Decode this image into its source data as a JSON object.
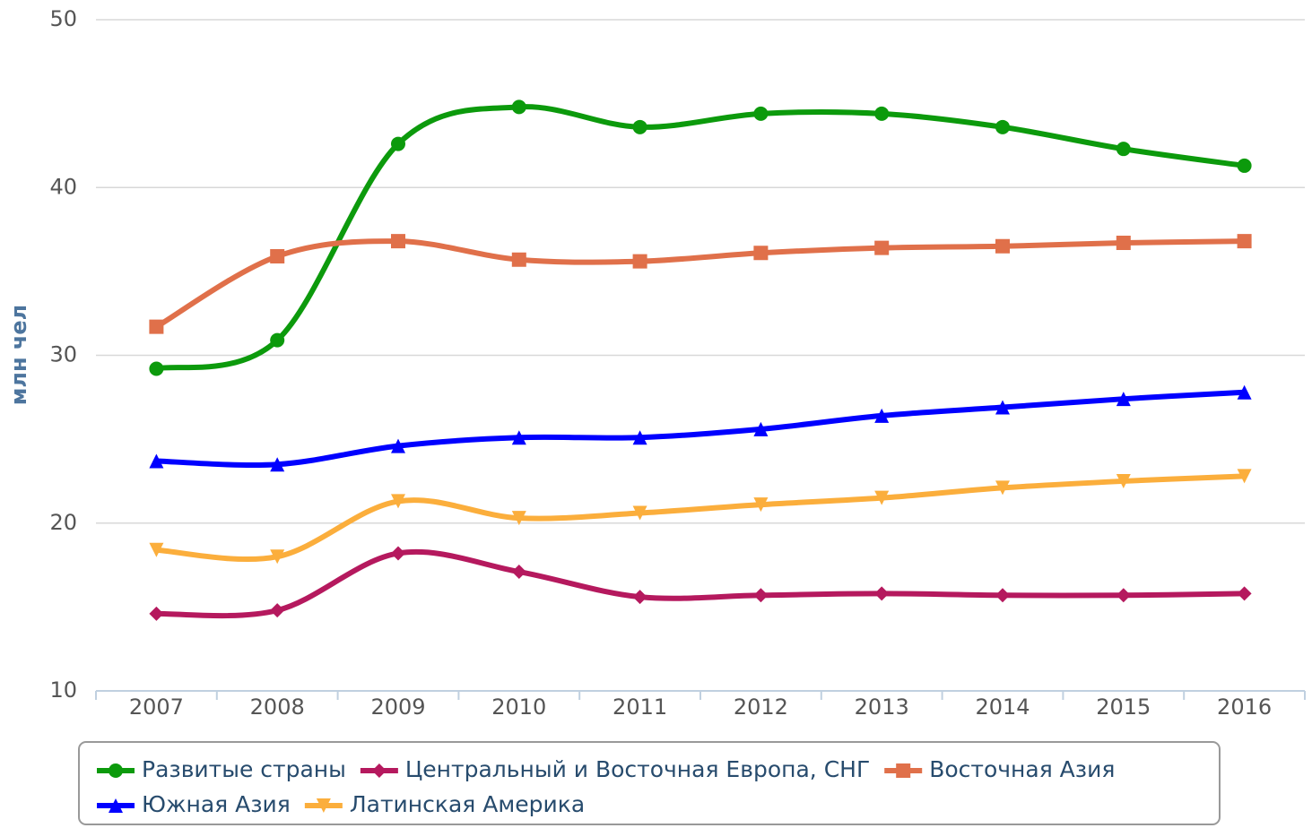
{
  "chart_data": {
    "type": "line",
    "smooth": true,
    "y_axis_label": "млн чел",
    "categories": [
      "2007",
      "2008",
      "2009",
      "2010",
      "2011",
      "2012",
      "2013",
      "2014",
      "2015",
      "2016"
    ],
    "series": [
      {
        "name": "Развитые страны",
        "color": "#0c9a0c",
        "symbol": "circle",
        "values": [
          29.2,
          30.9,
          42.6,
          44.8,
          43.6,
          44.4,
          44.4,
          43.6,
          42.3,
          41.3
        ]
      },
      {
        "name": "Центральный и Восточная Европа, СНГ",
        "color": "#b5195e",
        "symbol": "diamond",
        "values": [
          14.6,
          14.8,
          18.2,
          17.1,
          15.6,
          15.7,
          15.8,
          15.7,
          15.7,
          15.8
        ]
      },
      {
        "name": "Восточная Азия",
        "color": "#e0704a",
        "symbol": "square",
        "values": [
          31.7,
          35.9,
          36.8,
          35.7,
          35.6,
          36.1,
          36.4,
          36.5,
          36.7,
          36.8
        ]
      },
      {
        "name": "Южная Азия",
        "color": "#0000ff",
        "symbol": "triangle",
        "values": [
          23.7,
          23.5,
          24.6,
          25.1,
          25.1,
          25.6,
          26.4,
          26.9,
          27.4,
          27.8
        ]
      },
      {
        "name": "Латинская Америка",
        "color": "#fbae3c",
        "symbol": "triangle-down",
        "values": [
          18.4,
          18.0,
          21.3,
          20.3,
          20.6,
          21.1,
          21.5,
          22.1,
          22.5,
          22.8
        ]
      }
    ],
    "ylim": [
      10,
      50
    ],
    "yticks": [
      10,
      20,
      30,
      40,
      50
    ],
    "grid": true,
    "legend": "bottom"
  }
}
